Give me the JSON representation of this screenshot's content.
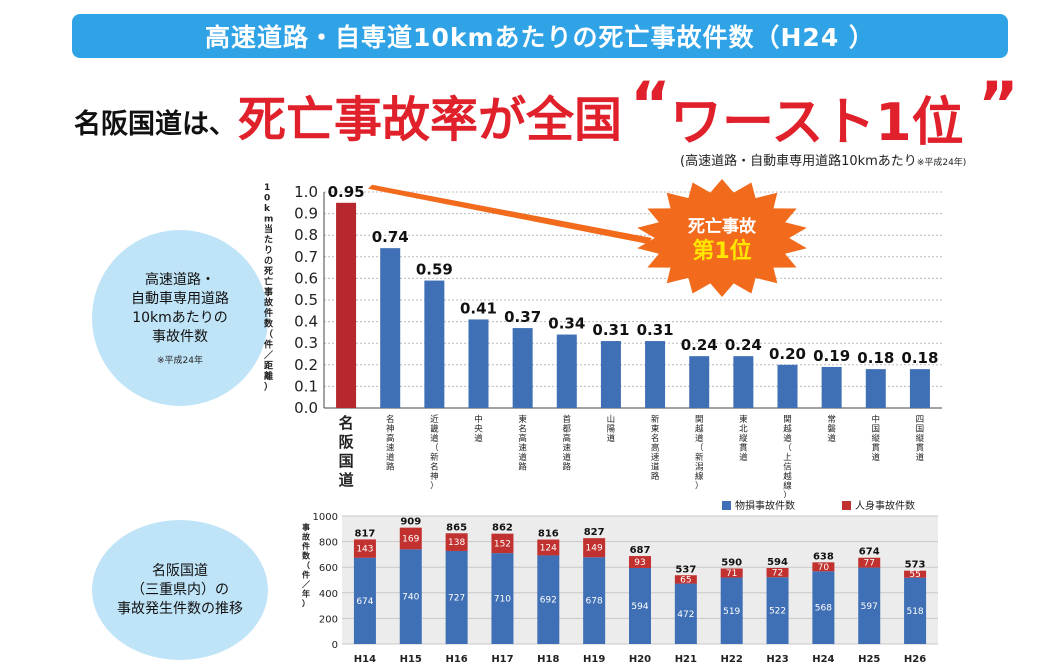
{
  "banner": {
    "title": "高速道路・自専道10kmあたりの死亡事故件数（H24 ）"
  },
  "headline": {
    "prefix": "名阪国道は、",
    "main": "死亡事故率が全国",
    "open_quote": "“",
    "worst": "ワースト1位",
    "close_quote": "”"
  },
  "note": {
    "text": "(高速道路・自動車専用道路10kmあたり",
    "small": "※平成24年)"
  },
  "circle1": {
    "lines": [
      "高速道路・",
      "自動車専用道路",
      "10kmあたりの",
      "事故件数"
    ],
    "note": "※平成24年"
  },
  "circle2": {
    "lines": [
      "名阪国道",
      "（三重県内）の",
      "事故発生件数の推移"
    ]
  },
  "burst": {
    "line1": "死亡事故",
    "line2": "第1位"
  },
  "colors": {
    "banner": "#2fa3e6",
    "accent_red": "#e0202a",
    "bar_red": "#b7282e",
    "bar_blue": "#3f6fb5",
    "circle": "#bfe3f7"
  },
  "chart_data": [
    {
      "type": "bar",
      "ylabel": "10km当たりの死亡事故件数（件／距離）",
      "ylim": [
        0,
        1.0
      ],
      "yticks": [
        "0.0",
        "0.1",
        "0.2",
        "0.3",
        "0.4",
        "0.5",
        "0.6",
        "0.7",
        "0.8",
        "0.9",
        "1.0"
      ],
      "categories": [
        "名阪国道",
        "名神高速道路",
        "近畿道（新名神）",
        "中央道",
        "東名高速道路",
        "首都高速道路",
        "山陽道",
        "新東名高速道路",
        "関越道（新潟線）",
        "東北縦貫道",
        "関越道（上信越線）",
        "常磐道",
        "中国縦貫道",
        "四国縦貫道"
      ],
      "values": [
        0.95,
        0.74,
        0.59,
        0.41,
        0.37,
        0.34,
        0.31,
        0.31,
        0.24,
        0.24,
        0.2,
        0.19,
        0.18,
        0.18
      ],
      "value_labels": [
        "0.95",
        "0.74",
        "0.59",
        "0.41",
        "0.37",
        "0.34",
        "0.31",
        "0.31",
        "0.24",
        "0.24",
        "0.20",
        "0.19",
        "0.18",
        "0.18"
      ],
      "highlight_index": 0,
      "grid": true
    },
    {
      "type": "bar",
      "stacked": true,
      "ylabel": "事故件数（件／年）",
      "ylim": [
        0,
        1000
      ],
      "yticks": [
        "0",
        "200",
        "400",
        "600",
        "800",
        "1000"
      ],
      "categories": [
        "H14",
        "H15",
        "H16",
        "H17",
        "H18",
        "H19",
        "H20",
        "H21",
        "H22",
        "H23",
        "H24",
        "H25",
        "H26"
      ],
      "series": [
        {
          "name": "物損事故件数",
          "color": "#3f6fb5",
          "values": [
            674,
            740,
            727,
            710,
            692,
            678,
            594,
            472,
            519,
            522,
            568,
            597,
            518
          ]
        },
        {
          "name": "人身事故件数",
          "color": "#c0312f",
          "values": [
            143,
            169,
            138,
            152,
            124,
            149,
            93,
            65,
            71,
            72,
            70,
            77,
            55
          ]
        }
      ],
      "totals": [
        817,
        909,
        865,
        862,
        816,
        827,
        687,
        537,
        590,
        594,
        638,
        674,
        573
      ],
      "legend": "top-right",
      "grid": true
    }
  ]
}
